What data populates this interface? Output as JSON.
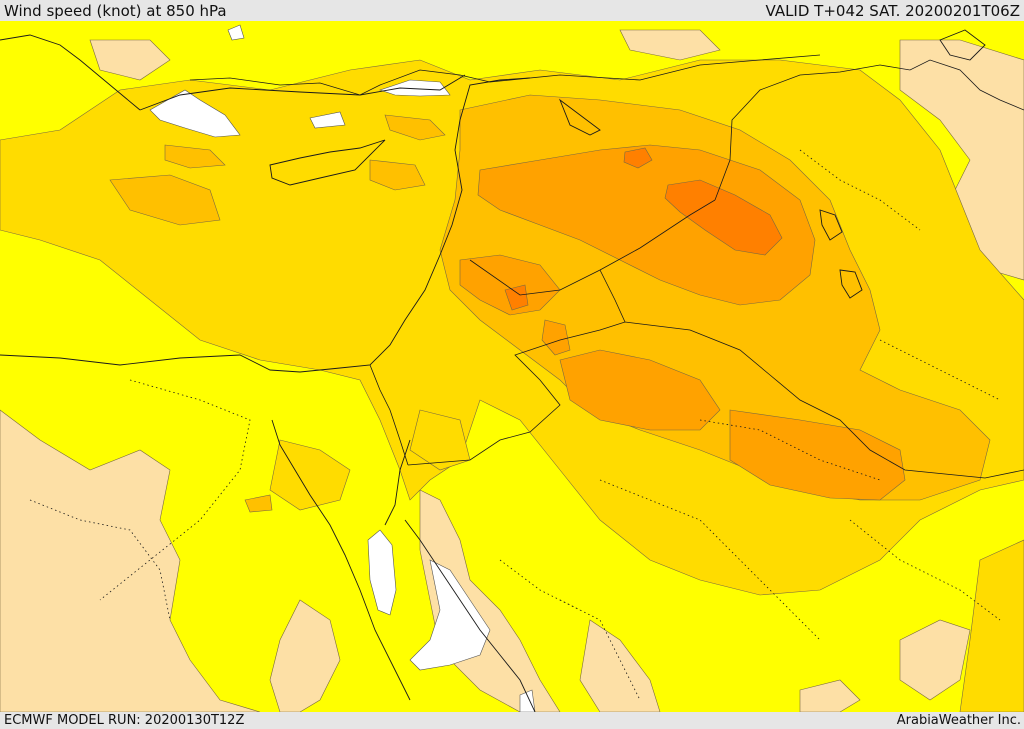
{
  "header": {
    "title": "Wind speed (knot) at 850 hPa",
    "valid": "VALID T+042 SAT. 20200201T06Z"
  },
  "footer": {
    "model_run": "ECMWF MODEL RUN: 20200130T12Z",
    "credit": "ArabiaWeather Inc."
  },
  "map": {
    "region": "Middle East",
    "field": "wind speed",
    "palette": {
      "light": "#fde0a6",
      "yellow": "#ffff00",
      "gold": "#ffdc00",
      "amber": "#ffc000",
      "orange": "#ffa200",
      "deep_orange": "#ff8000",
      "calm": "#ffffff",
      "line": "#1a1a1a"
    }
  }
}
